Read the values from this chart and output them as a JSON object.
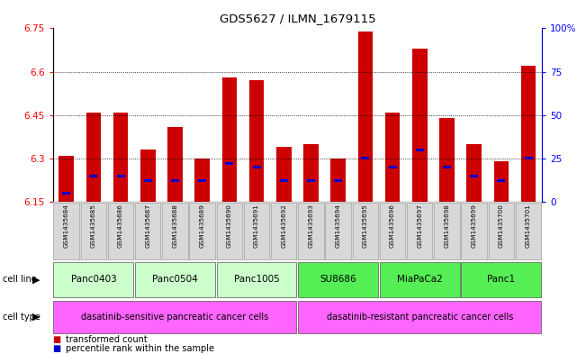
{
  "title": "GDS5627 / ILMN_1679115",
  "samples": [
    "GSM1435684",
    "GSM1435685",
    "GSM1435686",
    "GSM1435687",
    "GSM1435688",
    "GSM1435689",
    "GSM1435690",
    "GSM1435691",
    "GSM1435692",
    "GSM1435693",
    "GSM1435694",
    "GSM1435695",
    "GSM1435696",
    "GSM1435697",
    "GSM1435698",
    "GSM1435699",
    "GSM1435700",
    "GSM1435701"
  ],
  "red_values": [
    6.31,
    6.46,
    6.46,
    6.33,
    6.41,
    6.3,
    6.58,
    6.57,
    6.34,
    6.35,
    6.3,
    6.74,
    6.46,
    6.68,
    6.44,
    6.35,
    6.29,
    6.62
  ],
  "blue_pct": [
    5,
    15,
    15,
    12,
    12,
    12,
    22,
    20,
    12,
    12,
    12,
    25,
    20,
    30,
    20,
    15,
    12,
    25
  ],
  "ymin": 6.15,
  "ymax": 6.75,
  "yticks": [
    6.15,
    6.3,
    6.45,
    6.6,
    6.75
  ],
  "right_yticks": [
    0,
    25,
    50,
    75,
    100
  ],
  "cell_lines": [
    {
      "label": "Panc0403",
      "start": 0,
      "end": 2,
      "color": "#ccffcc"
    },
    {
      "label": "Panc0504",
      "start": 3,
      "end": 5,
      "color": "#ccffcc"
    },
    {
      "label": "Panc1005",
      "start": 6,
      "end": 8,
      "color": "#ccffcc"
    },
    {
      "label": "SU8686",
      "start": 9,
      "end": 11,
      "color": "#55ee55"
    },
    {
      "label": "MiaPaCa2",
      "start": 12,
      "end": 14,
      "color": "#55ee55"
    },
    {
      "label": "Panc1",
      "start": 15,
      "end": 17,
      "color": "#55ee55"
    }
  ],
  "cell_types": [
    {
      "label": "dasatinib-sensitive pancreatic cancer cells",
      "start": 0,
      "end": 8,
      "color": "#ff66ff"
    },
    {
      "label": "dasatinib-resistant pancreatic cancer cells",
      "start": 9,
      "end": 17,
      "color": "#ff66ff"
    }
  ],
  "bar_color": "#cc0000",
  "blue_color": "#0000cc",
  "sample_bg": "#d8d8d8",
  "grid_color": "#000000",
  "legend_items": [
    {
      "color": "#cc0000",
      "label": "transformed count"
    },
    {
      "color": "#0000cc",
      "label": "percentile rank within the sample"
    }
  ]
}
